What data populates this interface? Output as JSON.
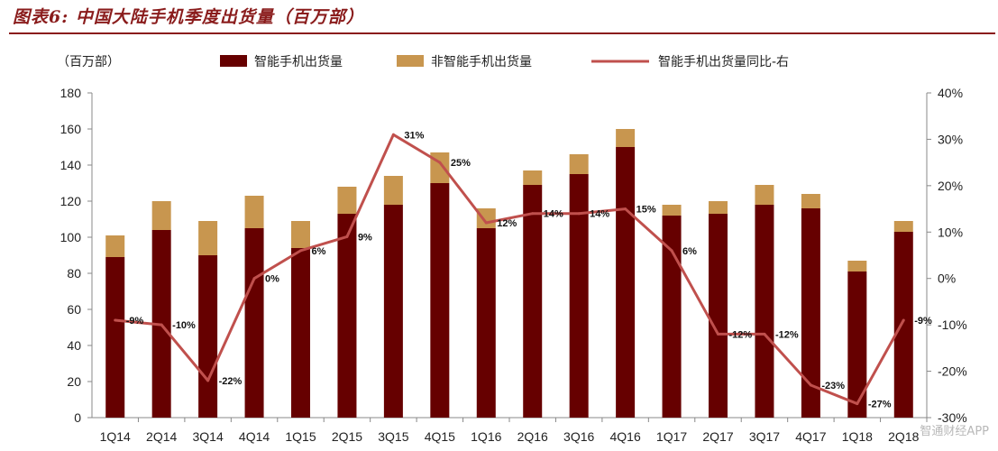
{
  "title": "图表6: 中国大陆手机季度出货量（百万部）",
  "watermark": "智通财经APP",
  "colors": {
    "smart": "#660000",
    "nonsmart": "#c8964f",
    "line": "#c0504d",
    "title": "#8a1c1c"
  },
  "chart_data": {
    "type": "bar",
    "stacked": true,
    "categories": [
      "1Q14",
      "2Q14",
      "3Q14",
      "4Q14",
      "1Q15",
      "2Q15",
      "3Q15",
      "4Q15",
      "1Q16",
      "2Q16",
      "3Q16",
      "4Q16",
      "1Q17",
      "2Q17",
      "3Q17",
      "4Q17",
      "1Q18",
      "2Q18"
    ],
    "y_unit_label": "（百万部）",
    "ylim": [
      0,
      180
    ],
    "yticks": [
      0,
      20,
      40,
      60,
      80,
      100,
      120,
      140,
      160,
      180
    ],
    "y2lim": [
      -30,
      40
    ],
    "y2ticks": [
      "-30%",
      "-20%",
      "-10%",
      "0%",
      "10%",
      "20%",
      "30%",
      "40%"
    ],
    "legend_position": "top",
    "grid": false,
    "series": [
      {
        "name": "智能手机出货量",
        "type": "bar",
        "values": [
          89,
          104,
          90,
          105,
          94,
          113,
          118,
          130,
          105,
          129,
          135,
          150,
          112,
          113,
          118,
          116,
          81,
          103
        ]
      },
      {
        "name": "非智能手机出货量",
        "type": "bar",
        "values": [
          12,
          16,
          19,
          18,
          15,
          15,
          16,
          17,
          11,
          8,
          11,
          10,
          6,
          7,
          11,
          8,
          6,
          6
        ]
      },
      {
        "name": "智能手机出货量同比-右",
        "type": "line",
        "axis": "right",
        "values": [
          -9,
          -10,
          -22,
          0,
          6,
          9,
          31,
          25,
          12,
          14,
          14,
          15,
          6,
          -12,
          -12,
          -23,
          -27,
          -9
        ],
        "labels": [
          "-9%",
          "-10%",
          "-22%",
          "0%",
          "6%",
          "9%",
          "31%",
          "25%",
          "12%",
          "14%",
          "14%",
          "15%",
          "6%",
          "-12%",
          "-12%",
          "-23%",
          "-27%",
          "-9%"
        ]
      }
    ]
  }
}
